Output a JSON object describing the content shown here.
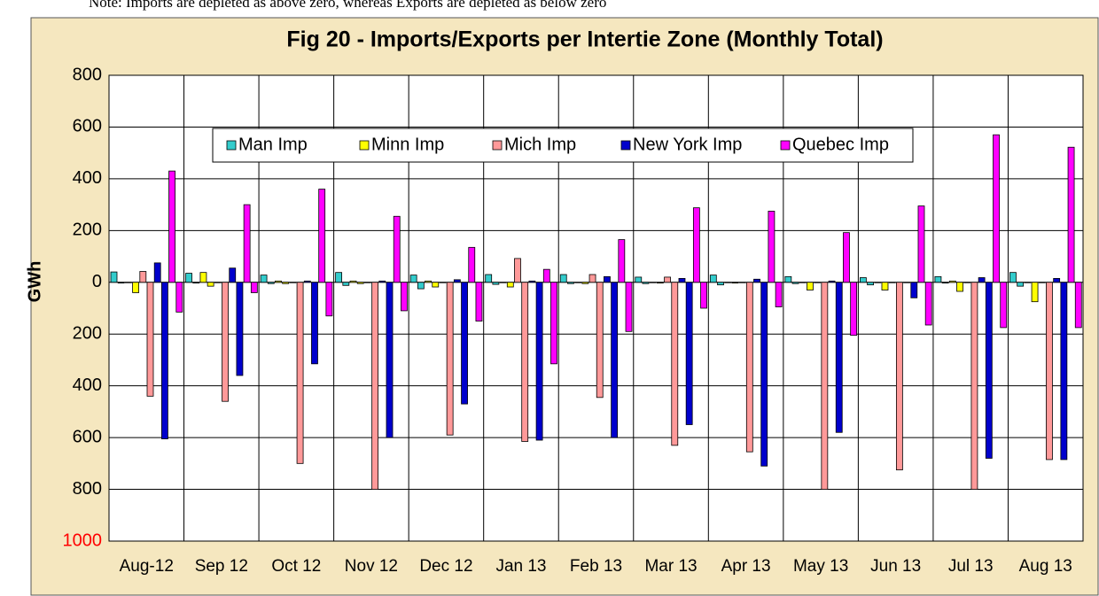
{
  "note": "Note: Imports are depleted as above zero, whereas Exports are depleted as below zero",
  "chart_data": {
    "type": "bar",
    "title": "Fig  20 - Imports/Exports per Intertie Zone (Monthly Total)",
    "y_label": "GWh",
    "categories": [
      "Aug-12",
      "Sep 12",
      "Oct 12",
      "Nov 12",
      "Dec 12",
      "Jan 13",
      "Feb 13",
      "Mar 13",
      "Apr 13",
      "May 13",
      "Jun 13",
      "Jul 13",
      "Aug 13"
    ],
    "series": [
      {
        "name": "Man Imp",
        "color": "#33cccc",
        "values": [
          40,
          35,
          28,
          38,
          28,
          30,
          30,
          20,
          28,
          22,
          18,
          22,
          38
        ],
        "exports": [
          -3,
          -3,
          -5,
          -12,
          -25,
          -8,
          -5,
          -5,
          -10,
          -5,
          -10,
          -3,
          -15
        ]
      },
      {
        "name": "Minn Imp",
        "color": "#ffff00",
        "values": [
          0,
          38,
          5,
          5,
          5,
          0,
          0,
          0,
          0,
          0,
          0,
          5,
          0
        ],
        "exports": [
          -40,
          -15,
          -5,
          -5,
          -18,
          -18,
          -5,
          -3,
          -3,
          -30,
          -30,
          -35,
          -75
        ]
      },
      {
        "name": "Mich Imp",
        "color": "#ff9999",
        "values": [
          42,
          0,
          0,
          0,
          0,
          92,
          30,
          20,
          0,
          0,
          0,
          0,
          0
        ],
        "exports": [
          -440,
          -460,
          -700,
          -800,
          -590,
          -615,
          -445,
          -630,
          -655,
          -800,
          -725,
          -800,
          -685
        ]
      },
      {
        "name": "New York Imp",
        "color": "#0000cc",
        "values": [
          75,
          55,
          5,
          5,
          10,
          5,
          22,
          15,
          12,
          5,
          0,
          18,
          15
        ],
        "exports": [
          -605,
          -360,
          -315,
          -600,
          -470,
          -610,
          -600,
          -550,
          -710,
          -580,
          -60,
          -680,
          -685
        ]
      },
      {
        "name": "Quebec Imp",
        "color": "#ff00ff",
        "values": [
          430,
          300,
          360,
          255,
          135,
          50,
          165,
          288,
          275,
          192,
          295,
          570,
          522
        ],
        "exports": [
          -115,
          -40,
          -130,
          -110,
          -150,
          -315,
          -190,
          -100,
          -95,
          -205,
          -165,
          -175,
          -175
        ]
      }
    ],
    "ylim": [
      -1000,
      800
    ],
    "yticks": [
      800,
      600,
      400,
      200,
      0,
      {
        "value": -200,
        "label": "200"
      },
      {
        "value": -400,
        "label": "400"
      },
      {
        "value": -600,
        "label": "600"
      },
      {
        "value": -800,
        "label": "800"
      },
      {
        "value": -1000,
        "label": "1000",
        "color": "#ff0000"
      }
    ],
    "grid": true,
    "background": "#f5e7bf"
  }
}
